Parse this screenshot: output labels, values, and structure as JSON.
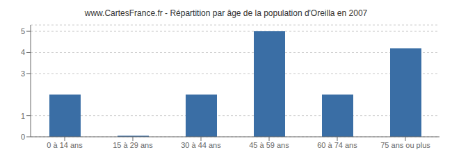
{
  "chart_data": {
    "type": "bar",
    "title": "www.CartesFrance.fr - Répartition par âge de la population d'Oreilla en 2007",
    "categories": [
      "0 à 14 ans",
      "15 à 29 ans",
      "30 à 44 ans",
      "45 à 59 ans",
      "60 à 74 ans",
      "75 ans ou plus"
    ],
    "values": [
      2.0,
      0.05,
      2.0,
      5.0,
      2.0,
      4.2
    ],
    "color": "#3a6ea5",
    "ylim": [
      0,
      5.3
    ],
    "yticks": [
      0,
      1,
      3,
      4,
      5
    ],
    "grid": true
  }
}
